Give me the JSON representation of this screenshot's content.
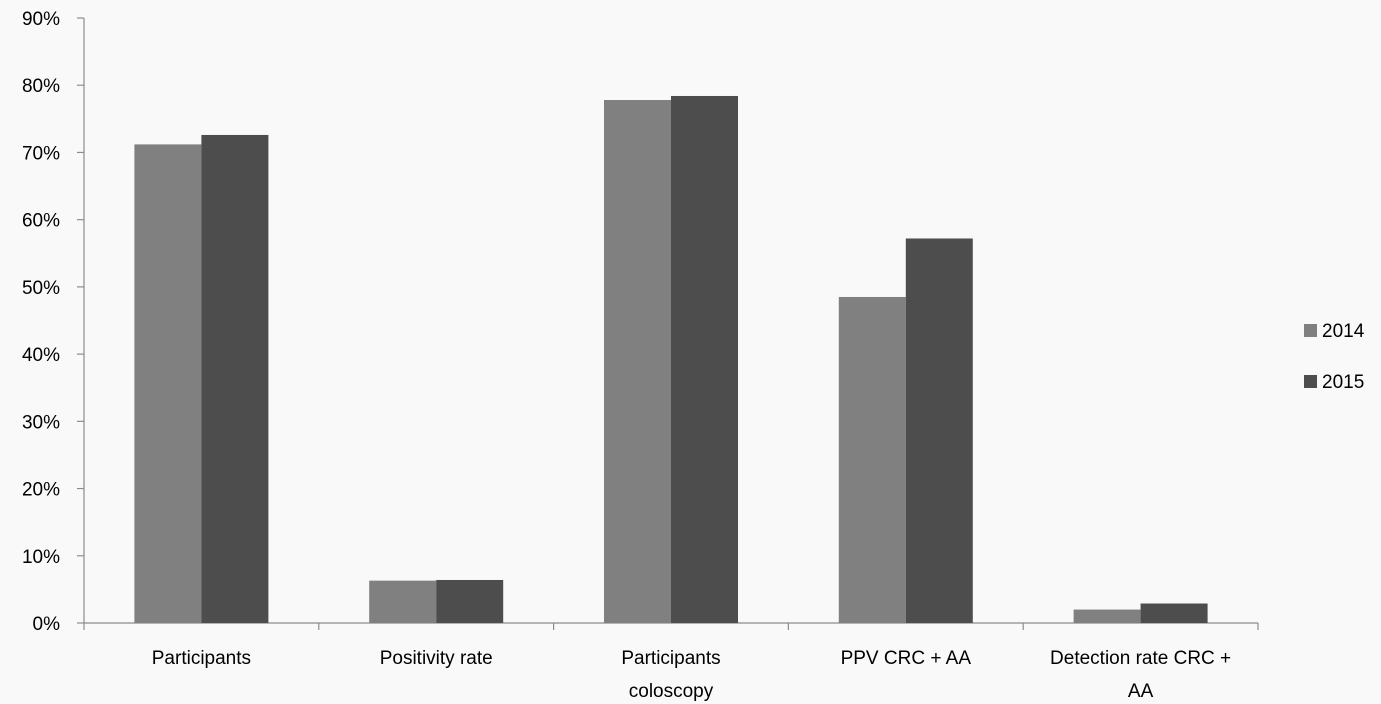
{
  "chart_data": {
    "type": "bar",
    "categories": [
      [
        "Participants"
      ],
      [
        "Positivity rate"
      ],
      [
        "Participants",
        "coloscopy"
      ],
      [
        "PPV CRC + AA"
      ],
      [
        "Detection rate CRC +",
        "AA"
      ]
    ],
    "series": [
      {
        "name": "2014",
        "color": "#808080",
        "values": [
          71.2,
          6.3,
          77.8,
          48.5,
          2.0
        ]
      },
      {
        "name": "2015",
        "color": "#4d4d4d",
        "values": [
          72.6,
          6.4,
          78.4,
          57.2,
          2.9
        ]
      }
    ],
    "ylim": [
      0,
      90
    ],
    "yticks": [
      "0%",
      "10%",
      "20%",
      "30%",
      "40%",
      "50%",
      "60%",
      "70%",
      "80%",
      "90%"
    ],
    "grid": false,
    "legend_position": "right"
  }
}
